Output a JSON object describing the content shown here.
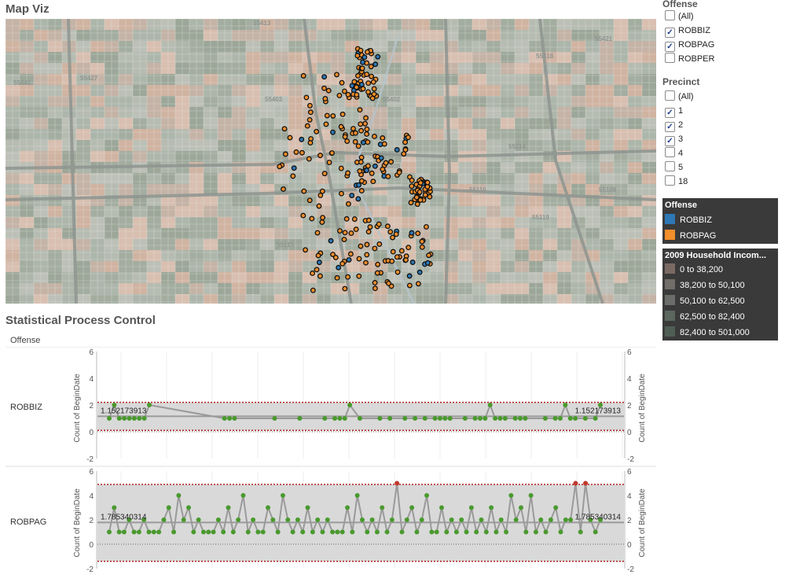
{
  "map_title": "Map Viz",
  "spc_title": "Statistical Process Control",
  "offense_filter": {
    "title": "Offense",
    "options": [
      {
        "label": "(All)",
        "checked": false
      },
      {
        "label": "ROBBIZ",
        "checked": true
      },
      {
        "label": "ROBPAG",
        "checked": true
      },
      {
        "label": "ROBPER",
        "checked": false
      }
    ]
  },
  "precinct_filter": {
    "title": "Precinct",
    "options": [
      {
        "label": "(All)",
        "checked": false
      },
      {
        "label": "1",
        "checked": true
      },
      {
        "label": "2",
        "checked": true
      },
      {
        "label": "3",
        "checked": true
      },
      {
        "label": "4",
        "checked": false
      },
      {
        "label": "5",
        "checked": false
      },
      {
        "label": "18",
        "checked": false
      }
    ]
  },
  "offense_legend": {
    "title": "Offense",
    "items": [
      {
        "label": "ROBBIZ",
        "color": "#2e78b5"
      },
      {
        "label": "ROBPAG",
        "color": "#f28e2b"
      }
    ]
  },
  "income_legend": {
    "title": "2009 Household Incom...",
    "items": [
      {
        "label": "0 to 38,200",
        "color": "#7b6a63"
      },
      {
        "label": "38,200 to 50,100",
        "color": "#716d69"
      },
      {
        "label": "50,100 to 62,500",
        "color": "#6a6d6a"
      },
      {
        "label": "62,500 to 82,400",
        "color": "#5b665f"
      },
      {
        "label": "82,400 to 501,000",
        "color": "#4f5e55"
      }
    ]
  },
  "map_labels": [
    "55413",
    "55441",
    "55427",
    "55418",
    "55421",
    "55402",
    "55403",
    "55408",
    "55114",
    "55116",
    "55108",
    "55119",
    "55115"
  ],
  "chart_data": {
    "type": "scatter",
    "column_header": "Offense",
    "axis_label": "Count of BeginDate",
    "panes": [
      {
        "name": "ROBBIZ",
        "mean": 1.152173913,
        "mean_label": "1.152173913",
        "ucl": 2.2,
        "lcl": 0.1,
        "yrange": [
          -2,
          6
        ],
        "yticks": [
          "-2",
          "0",
          "2",
          "4",
          "6"
        ],
        "x": [
          1,
          2,
          3,
          4,
          5,
          6,
          7,
          8,
          9,
          24,
          25,
          26,
          34,
          39,
          44,
          46,
          47,
          48,
          49,
          51,
          55,
          57,
          60,
          62,
          64,
          66,
          67,
          68,
          69,
          72,
          74,
          75,
          76,
          77,
          78,
          79,
          80,
          82,
          83,
          84,
          88,
          90,
          91,
          92,
          93,
          94,
          96,
          98,
          99
        ],
        "values": [
          1,
          2,
          1,
          1,
          1,
          1,
          1,
          1,
          2,
          1,
          1,
          1,
          1,
          1,
          1,
          1,
          1,
          1,
          2,
          1,
          1,
          1,
          1,
          1,
          1,
          1,
          1,
          1,
          1,
          1,
          1,
          1,
          1,
          2,
          1,
          1,
          1,
          1,
          1,
          1,
          1,
          1,
          1,
          2,
          1,
          1,
          1,
          1,
          2
        ]
      },
      {
        "name": "ROBPAG",
        "mean": 1.785340314,
        "mean_label": "1.785340314",
        "ucl": 4.9,
        "lcl": -1.4,
        "yrange": [
          -2,
          6
        ],
        "yticks": [
          "-2",
          "0",
          "2",
          "4",
          "6"
        ],
        "x": [
          1,
          2,
          3,
          4,
          5,
          6,
          7,
          8,
          9,
          10,
          11,
          12,
          13,
          14,
          15,
          16,
          17,
          18,
          19,
          20,
          21,
          22,
          23,
          24,
          25,
          26,
          27,
          28,
          29,
          30,
          31,
          32,
          33,
          34,
          35,
          36,
          37,
          38,
          39,
          40,
          41,
          42,
          43,
          44,
          45,
          46,
          47,
          48,
          49,
          50,
          51,
          52,
          53,
          54,
          55,
          56,
          57,
          58,
          59,
          60,
          61,
          62,
          63,
          64,
          65,
          66,
          67,
          68,
          69,
          70,
          71,
          72,
          73,
          74,
          75,
          76,
          77,
          78,
          79,
          80,
          81,
          82,
          83,
          84,
          85,
          86,
          87,
          88,
          89,
          90,
          91,
          92,
          93,
          94,
          95,
          96,
          97,
          98,
          99,
          100
        ],
        "values": [
          1,
          3,
          1,
          1,
          2,
          1,
          1,
          2,
          1,
          1,
          1,
          2,
          3,
          1,
          4,
          2,
          3,
          1,
          2,
          1,
          1,
          1,
          2,
          1,
          3,
          1,
          2,
          4,
          1,
          2,
          1,
          1,
          3,
          2,
          1,
          4,
          2,
          1,
          2,
          1,
          3,
          1,
          2,
          1,
          2,
          1,
          1,
          1,
          3,
          1,
          4,
          2,
          1,
          2,
          1,
          3,
          1,
          2,
          5,
          1,
          2,
          3,
          1,
          2,
          4,
          1,
          1,
          3,
          1,
          2,
          1,
          2,
          1,
          3,
          1,
          2,
          1,
          3,
          1,
          2,
          1,
          4,
          2,
          3,
          1,
          4,
          1,
          2,
          1,
          2,
          3,
          1,
          2,
          2,
          5,
          1,
          5,
          2,
          1,
          2
        ],
        "out_of_control": [
          59,
          95,
          97
        ]
      }
    ]
  }
}
